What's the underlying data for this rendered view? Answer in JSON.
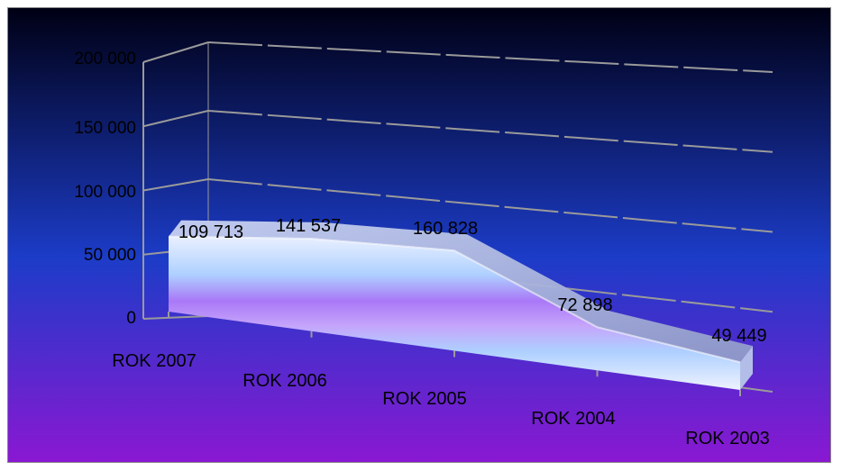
{
  "chart_data": {
    "type": "area",
    "categories": [
      "ROK  2007",
      "ROK 2006",
      "ROK  2005",
      "ROK 2004",
      "ROK  2003"
    ],
    "values": [
      109713,
      141537,
      160828,
      72898,
      49449
    ],
    "data_labels": [
      "109 713",
      "141 537",
      "160 828",
      "72 898",
      "49 449"
    ],
    "y_ticks": [
      "0",
      "50 000",
      "100 000",
      "150 000",
      "200 000"
    ],
    "y_tick_values": [
      0,
      50000,
      100000,
      150000,
      200000
    ],
    "ylim": [
      0,
      200000
    ],
    "title": "",
    "xlabel": "",
    "ylabel": "",
    "grid": true,
    "legend": "none"
  },
  "colors": {
    "background_top": "#000014",
    "background_mid": "#1c3cc8",
    "background_bottom": "#8a18d2",
    "gridline": "#9a9a9a",
    "area_light": "#eaf0ff",
    "area_violet": "#a978f7",
    "area_blue": "#aed0ff",
    "area_edge": "#b3bee8"
  }
}
